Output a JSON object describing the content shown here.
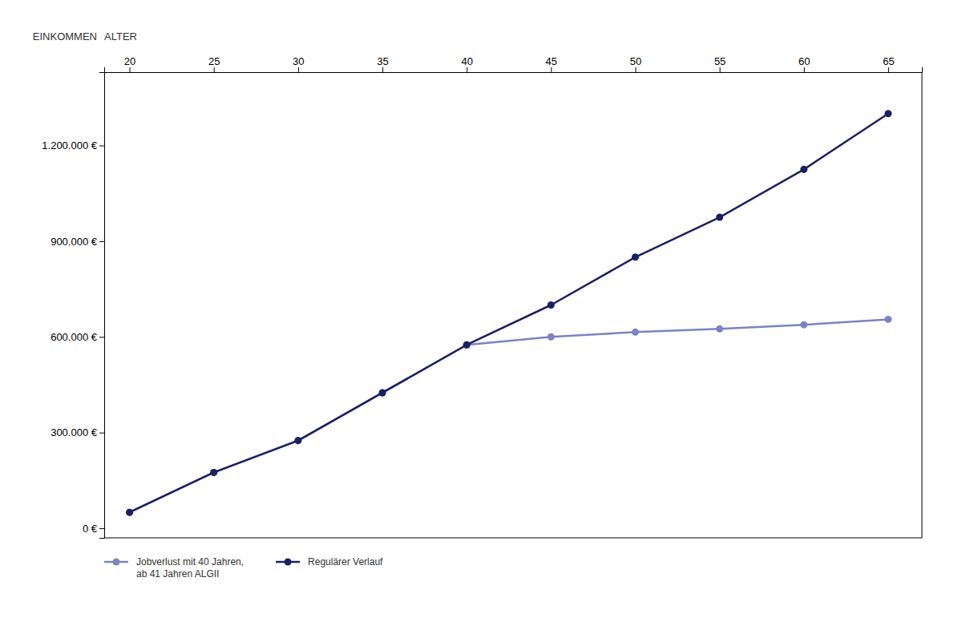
{
  "chart_data": {
    "type": "line",
    "x": [
      20,
      25,
      30,
      35,
      40,
      45,
      50,
      55,
      60,
      65
    ],
    "series": [
      {
        "name": "Jobverlust mit 40 Jahren,\nab 41 Jahren ALGII",
        "color": "#7b84c0",
        "marker": "circle",
        "values": [
          50000,
          175000,
          275000,
          425000,
          575000,
          600000,
          615000,
          625000,
          638000,
          655000
        ]
      },
      {
        "name": "Regulärer Verlauf",
        "color": "#1a2060",
        "marker": "circle",
        "values": [
          50000,
          175000,
          275000,
          425000,
          575000,
          700000,
          850000,
          975000,
          1125000,
          1300000
        ]
      }
    ],
    "xlabel": "ALTER",
    "ylabel": "EINKOMMEN",
    "xlim": [
      18.5,
      67
    ],
    "ylim": [
      -30000,
      1430000
    ],
    "xticks": [
      20,
      25,
      30,
      35,
      40,
      45,
      50,
      55,
      60,
      65
    ],
    "yticks": [
      {
        "value": 0,
        "label": "0 €"
      },
      {
        "value": 300000,
        "label": "300.000 €"
      },
      {
        "value": 600000,
        "label": "600.000 €"
      },
      {
        "value": 900000,
        "label": "900.000 €"
      },
      {
        "value": 1200000,
        "label": "1.200.000 €"
      }
    ],
    "grid": false,
    "legend": "bottom"
  }
}
